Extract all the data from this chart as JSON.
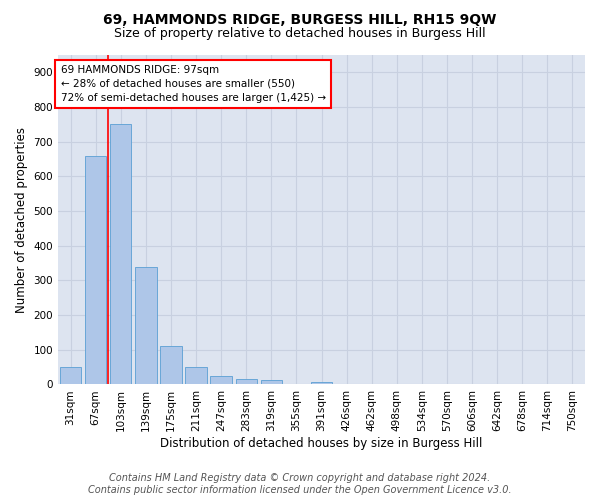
{
  "title": "69, HAMMONDS RIDGE, BURGESS HILL, RH15 9QW",
  "subtitle": "Size of property relative to detached houses in Burgess Hill",
  "xlabel": "Distribution of detached houses by size in Burgess Hill",
  "ylabel": "Number of detached properties",
  "footer_line1": "Contains HM Land Registry data © Crown copyright and database right 2024.",
  "footer_line2": "Contains public sector information licensed under the Open Government Licence v3.0.",
  "bar_labels": [
    "31sqm",
    "67sqm",
    "103sqm",
    "139sqm",
    "175sqm",
    "211sqm",
    "247sqm",
    "283sqm",
    "319sqm",
    "355sqm",
    "391sqm",
    "426sqm",
    "462sqm",
    "498sqm",
    "534sqm",
    "570sqm",
    "606sqm",
    "642sqm",
    "678sqm",
    "714sqm",
    "750sqm"
  ],
  "bar_values": [
    50,
    660,
    750,
    340,
    110,
    50,
    25,
    15,
    12,
    0,
    8,
    0,
    0,
    0,
    0,
    0,
    0,
    0,
    0,
    0,
    0
  ],
  "bar_color": "#aec6e8",
  "bar_edge_color": "#5a9fd4",
  "vline_x_index": 1.5,
  "annotation_text_line1": "69 HAMMONDS RIDGE: 97sqm",
  "annotation_text_line2": "← 28% of detached houses are smaller (550)",
  "annotation_text_line3": "72% of semi-detached houses are larger (1,425) →",
  "ylim": [
    0,
    950
  ],
  "yticks": [
    0,
    100,
    200,
    300,
    400,
    500,
    600,
    700,
    800,
    900
  ],
  "grid_color": "#c8d0e0",
  "bg_color": "#dde4f0",
  "title_fontsize": 10,
  "subtitle_fontsize": 9,
  "axis_label_fontsize": 8.5,
  "tick_fontsize": 7.5,
  "footer_fontsize": 7
}
